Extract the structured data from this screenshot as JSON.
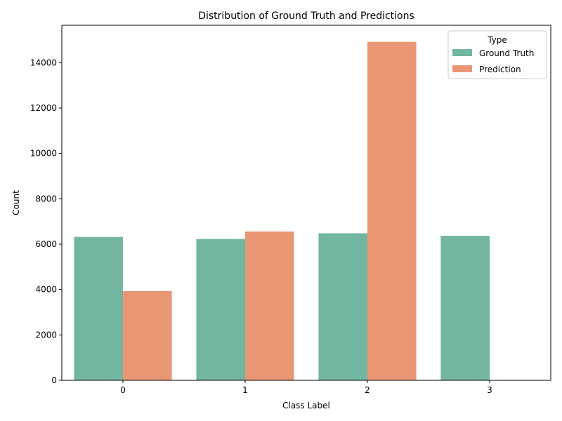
{
  "chart_data": {
    "type": "bar",
    "title": "Distribution of Ground Truth and Predictions",
    "xlabel": "Class Label",
    "ylabel": "Count",
    "categories": [
      "0",
      "1",
      "2",
      "3"
    ],
    "ylim": [
      0,
      15650
    ],
    "yticks": [
      0,
      2000,
      4000,
      6000,
      8000,
      10000,
      12000,
      14000
    ],
    "grid": false,
    "legend": {
      "title": "Type",
      "placement": "top-right"
    },
    "series": [
      {
        "name": "Ground Truth",
        "color": "#72b6a1",
        "values": [
          6320,
          6230,
          6480,
          6370
        ]
      },
      {
        "name": "Prediction",
        "color": "#e99675",
        "values": [
          3930,
          6560,
          14920,
          0
        ]
      }
    ]
  }
}
